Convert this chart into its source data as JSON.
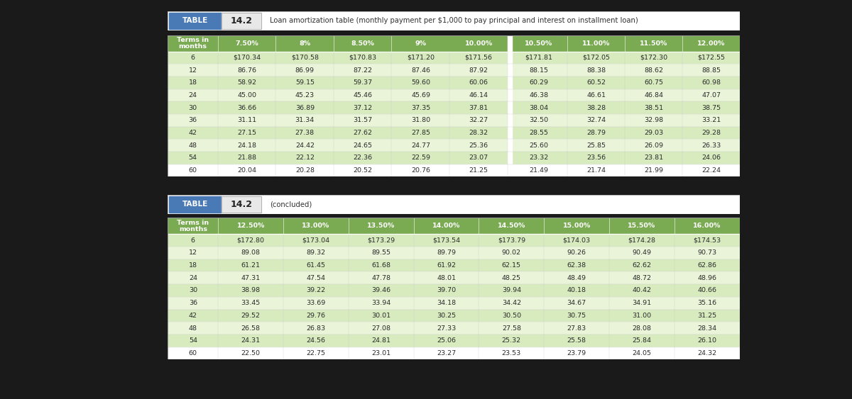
{
  "title_prefix": "TABLE",
  "title_number": "14.2",
  "title_desc": "Loan amortization table (monthly payment per $1,000 to pay principal and interest on installment loan)",
  "title2_prefix": "TABLE",
  "title2_number": "14.2",
  "title2_suffix": "(concluded)",
  "blue_header_bg": "#4a7ab5",
  "table_header_bg": "#7aaa52",
  "row_colors": [
    "#d8ebbf",
    "#eaf4d8",
    "#d8ebbf",
    "#eaf4d8",
    "#d8ebbf",
    "#eaf4d8",
    "#d8ebbf",
    "#eaf4d8",
    "#d8ebbf",
    "#ffffff"
  ],
  "last_row_bg": "#ffffff",
  "outer_bg": "#1a1a1a",
  "panel_bg": "#ffffff",
  "gap_bg": "#e0e0e0",
  "table1_cols": [
    "Terms in\nmonths",
    "7.50%",
    "8%",
    "8.50%",
    "9%",
    "10.00%",
    "10.50%",
    "11.00%",
    "11.50%",
    "12.00%"
  ],
  "table1_data": [
    [
      "6",
      "$170.34",
      "$170.58",
      "$170.83",
      "$171.20",
      "$171.56",
      "$171.81",
      "$172.05",
      "$172.30",
      "$172.55"
    ],
    [
      "12",
      "86.76",
      "86.99",
      "87.22",
      "87.46",
      "87.92",
      "88.15",
      "88.38",
      "88.62",
      "88.85"
    ],
    [
      "18",
      "58.92",
      "59.15",
      "59.37",
      "59.60",
      "60.06",
      "60.29",
      "60.52",
      "60.75",
      "60.98"
    ],
    [
      "24",
      "45.00",
      "45.23",
      "45.46",
      "45.69",
      "46.14",
      "46.38",
      "46.61",
      "46.84",
      "47.07"
    ],
    [
      "30",
      "36.66",
      "36.89",
      "37.12",
      "37.35",
      "37.81",
      "38.04",
      "38.28",
      "38.51",
      "38.75"
    ],
    [
      "36",
      "31.11",
      "31.34",
      "31.57",
      "31.80",
      "32.27",
      "32.50",
      "32.74",
      "32.98",
      "33.21"
    ],
    [
      "42",
      "27.15",
      "27.38",
      "27.62",
      "27.85",
      "28.32",
      "28.55",
      "28.79",
      "29.03",
      "29.28"
    ],
    [
      "48",
      "24.18",
      "24.42",
      "24.65",
      "24.77",
      "25.36",
      "25.60",
      "25.85",
      "26.09",
      "26.33"
    ],
    [
      "54",
      "21.88",
      "22.12",
      "22.36",
      "22.59",
      "23.07",
      "23.32",
      "23.56",
      "23.81",
      "24.06"
    ],
    [
      "60",
      "20.04",
      "20.28",
      "20.52",
      "20.76",
      "21.25",
      "21.49",
      "21.74",
      "21.99",
      "22.24"
    ]
  ],
  "table2_cols": [
    "Terms in\nmonths",
    "12.50%",
    "13.00%",
    "13.50%",
    "14.00%",
    "14.50%",
    "15.00%",
    "15.50%",
    "16.00%"
  ],
  "table2_data": [
    [
      "6",
      "$172.80",
      "$173.04",
      "$173.29",
      "$173.54",
      "$173.79",
      "$174.03",
      "$174.28",
      "$174.53"
    ],
    [
      "12",
      "89.08",
      "89.32",
      "89.55",
      "89.79",
      "90.02",
      "90.26",
      "90.49",
      "90.73"
    ],
    [
      "18",
      "61.21",
      "61.45",
      "61.68",
      "61.92",
      "62.15",
      "62.38",
      "62.62",
      "62.86"
    ],
    [
      "24",
      "47.31",
      "47.54",
      "47.78",
      "48.01",
      "48.25",
      "48.49",
      "48.72",
      "48.96"
    ],
    [
      "30",
      "38.98",
      "39.22",
      "39.46",
      "39.70",
      "39.94",
      "40.18",
      "40.42",
      "40.66"
    ],
    [
      "36",
      "33.45",
      "33.69",
      "33.94",
      "34.18",
      "34.42",
      "34.67",
      "34.91",
      "35.16"
    ],
    [
      "42",
      "29.52",
      "29.76",
      "30.01",
      "30.25",
      "30.50",
      "30.75",
      "31.00",
      "31.25"
    ],
    [
      "48",
      "26.58",
      "26.83",
      "27.08",
      "27.33",
      "27.58",
      "27.83",
      "28.08",
      "28.34"
    ],
    [
      "54",
      "24.31",
      "24.56",
      "24.81",
      "25.06",
      "25.32",
      "25.58",
      "25.84",
      "26.10"
    ],
    [
      "60",
      "22.50",
      "22.75",
      "23.01",
      "23.27",
      "23.53",
      "23.79",
      "24.05",
      "24.32"
    ]
  ]
}
